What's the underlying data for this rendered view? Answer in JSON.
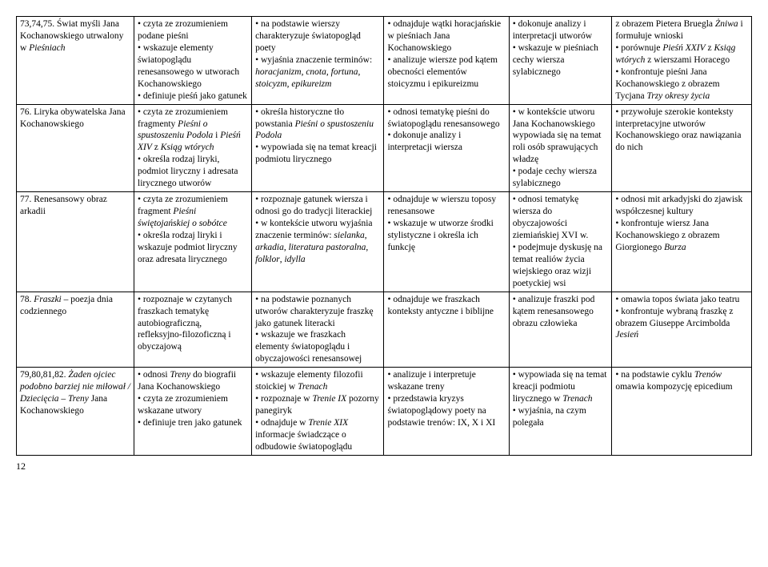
{
  "pageNumber": "12",
  "rows": [
    {
      "c0": "73,74,75. Świat myśli Jana Kochanowskiego utrwalony w <span class=\"italic\">Pieśniach</span>",
      "c1": "• czyta ze zrozumieniem podane pieśni<br>• wskazuje elementy światopoglądu renesansowego w utworach Kochanowskiego<br>• definiuje pieśń jako gatunek",
      "c2": "• na podstawie wierszy charakteryzuje światopogląd poety<br>• wyjaśnia znaczenie terminów: <span class=\"italic\">horacjanizm</span>, <span class=\"italic\">cnota</span>, <span class=\"italic\">fortuna</span>, <span class=\"italic\">stoicyzm</span>, <span class=\"italic\">epikureizm</span>",
      "c3": "• odnajduje wątki horacjańskie w pieśniach Jana Kochanowskiego<br>• analizuje wiersze pod kątem obecności elementów stoicyzmu i epikureizmu",
      "c4": "• dokonuje analizy i interpretacji utworów<br>• wskazuje w pieśniach cechy wiersza sylabicznego",
      "c5": "z obrazem Pietera Bruegla <span class=\"italic\">Żniwa</span> i formułuje wnioski<br>• porównuje <span class=\"italic\">Pieśń XXIV</span> z <span class=\"italic\">Ksiąg wtórych</span> z wierszami Horacego<br>• konfrontuje pieśni Jana Kochanowskiego z obrazem Tycjana <span class=\"italic\">Trzy okresy życia</span>"
    },
    {
      "c0": "76. Liryka obywatelska Jana Kochanowskiego",
      "c1": "• czyta ze zrozumieniem fragmenty <span class=\"italic\">Pieśni o spustoszeniu Podola</span> i <span class=\"italic\">Pieśń XIV</span> z <span class=\"italic\">Ksiąg wtórych</span><br>• określa rodzaj liryki, podmiot liryczny i adresata lirycznego utworów",
      "c2": "• określa historyczne tło powstania <span class=\"italic\">Pieśni o spustoszeniu Podola</span><br>• wypowiada się na temat kreacji podmiotu lirycznego",
      "c3": "• odnosi tematykę pieśni do światopoglądu renesansowego<br>• dokonuje analizy i interpretacji wiersza",
      "c4": "• w kontekście utworu Jana Kochanowskiego wypowiada się na temat roli osób sprawujących władzę<br>• podaje cechy wiersza sylabicznego",
      "c5": "• przywołuje szerokie konteksty interpretacyjne utworów Kochanowskiego oraz nawiązania do nich"
    },
    {
      "c0": "77. Renesansowy obraz arkadii",
      "c1": "• czyta ze zrozumieniem fragment <span class=\"italic\">Pieśni świętojańskiej o sobótce</span><br>• określa rodzaj liryki i wskazuje podmiot liryczny oraz adresata lirycznego",
      "c2": "• rozpoznaje gatunek wiersza i odnosi go do tradycji literackiej<br>• w kontekście utworu wyjaśnia znaczenie terminów: <span class=\"italic\">sielanka</span>, <span class=\"italic\">arkadia</span>, <span class=\"italic\">literatura pastoralna</span>, <span class=\"italic\">folklor</span>, <span class=\"italic\">idylla</span>",
      "c3": "• odnajduje w wierszu toposy renesansowe<br>• wskazuje w utworze środki stylistyczne i określa ich funkcję",
      "c4": "• odnosi tematykę wiersza do obyczajowości ziemiańskiej XVI w.<br>• podejmuje dyskusję na temat realiów życia wiejskiego oraz wizji poetyckiej wsi",
      "c5": "• odnosi mit arkadyjski do zjawisk współczesnej kultury<br>• konfrontuje wiersz Jana Kochanowskiego z obrazem Giorgionego <span class=\"italic\">Burza</span>"
    },
    {
      "c0": "78. <span class=\"italic\">Fraszki</span> – poezja dnia codziennego",
      "c1": "• rozpoznaje w czytanych fraszkach tematykę autobiograficzną, refleksyjno-filozoficzną i obyczajową",
      "c2": "• na podstawie poznanych utworów charakteryzuje fraszkę jako gatunek literacki<br>• wskazuje we fraszkach elementy światopoglądu i obyczajowości renesansowej",
      "c3": "• odnajduje we fraszkach konteksty antyczne i biblijne",
      "c4": "• analizuje fraszki pod kątem renesansowego obrazu człowieka",
      "c5": "• omawia topos świata jako teatru<br>• konfrontuje wybraną fraszkę z obrazem Giuseppe Arcimbolda <span class=\"italic\">Jesień</span>"
    },
    {
      "c0": "79,80,81,82. <span class=\"italic\">Żaden ojciec podobno barziej nie miłował / Dziecięcia</span> – <span class=\"italic\">Treny</span> Jana Kochanowskiego",
      "c1": "• odnosi <span class=\"italic\">Treny</span> do biografii Jana Kochanowskiego<br>• czyta ze zrozumieniem wskazane utwory<br>• definiuje tren jako gatunek",
      "c2": "• wskazuje elementy filozofii stoickiej w <span class=\"italic\">Trenach</span><br>• rozpoznaje w <span class=\"italic\">Trenie IX</span> pozorny panegiryk<br>• odnajduje w <span class=\"italic\">Trenie XIX</span> informacje świadczące o odbudowie światopoglądu",
      "c3": "• analizuje i interpretuje wskazane treny<br>• przedstawia kryzys światopoglądowy poety na podstawie trenów: IX, X i XI",
      "c4": "• wypowiada się na temat kreacji podmiotu lirycznego w <span class=\"italic\">Trenach</span><br>• wyjaśnia, na czym polegała",
      "c5": "• na podstawie cyklu <span class=\"italic\">Trenów</span> omawia kompozycję epicedium"
    }
  ]
}
